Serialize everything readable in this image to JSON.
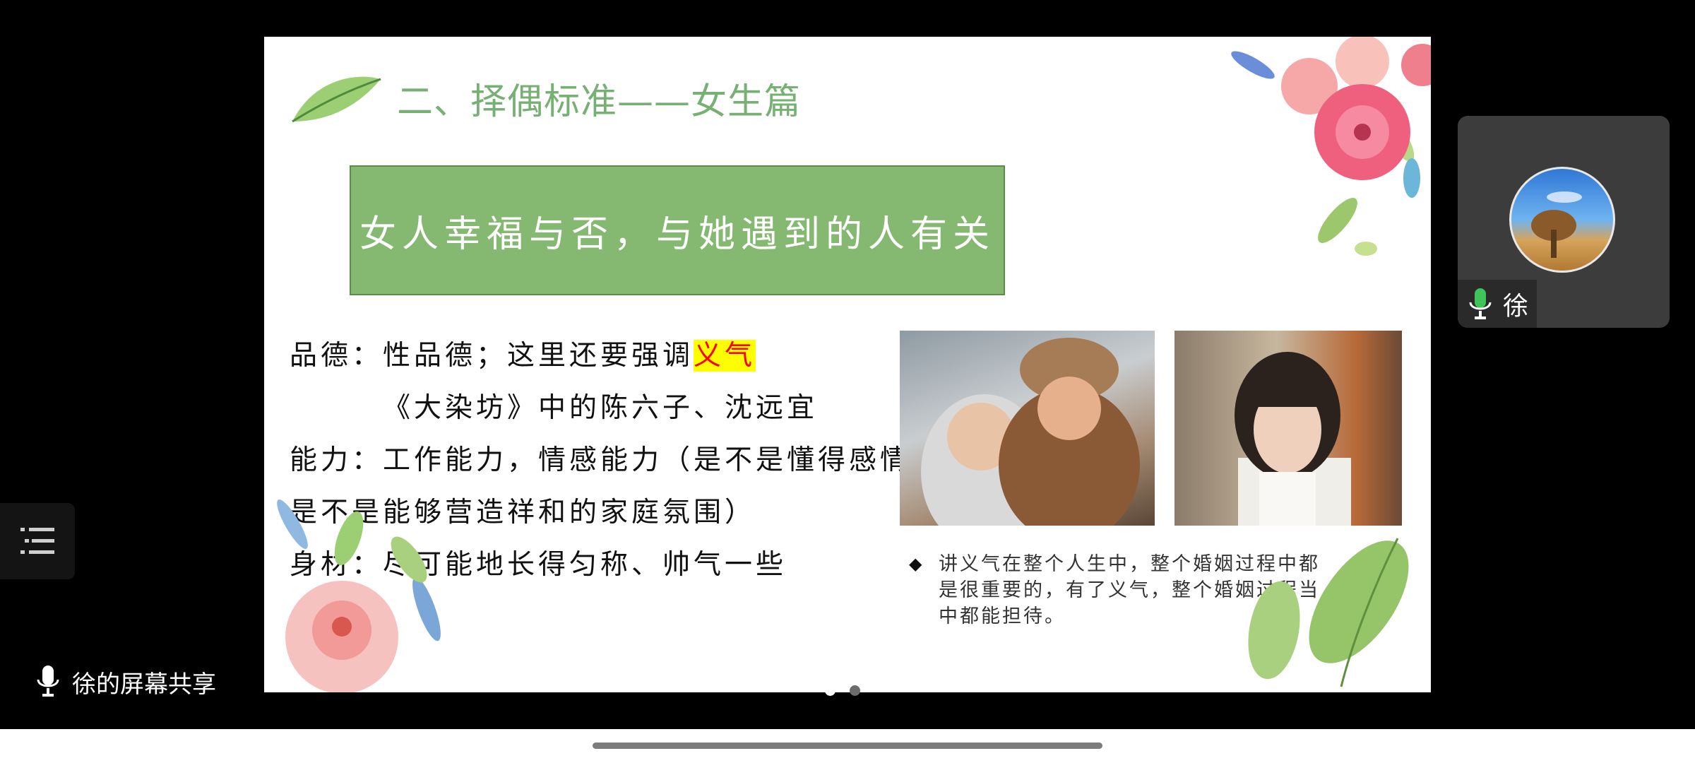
{
  "slide": {
    "title": "二、择偶标准——女生篇",
    "banner": "女人幸福与否，与她遇到的人有关",
    "lines": {
      "l1_prefix": "品德：性品德；这里还要强调",
      "l1_highlight": "义气",
      "l2": "《大染坊》中的陈六子、沈远宜",
      "l3": "能力：工作能力，情感能力（是不是懂得感情，",
      "l4": "是不是能够营造祥和的家庭氛围）",
      "l5": "身材：尽可能地长得匀称、帅气一些"
    },
    "note_bullet": "◆",
    "note": "讲义气在整个人生中，整个婚姻过程中都是很重要的，有了义气，整个婚姻过程当中都能担待。"
  },
  "participant": {
    "name": "徐",
    "mic_icon": "mic-icon"
  },
  "share_label": "徐的屏幕共享",
  "page_indicator": {
    "count": 2,
    "current": 1
  },
  "colors": {
    "title_green": "#76b072",
    "banner_green": "#85b870",
    "highlight_yellow": "#ffff00",
    "highlight_red": "#ff0000",
    "mic_green": "#3ec45a"
  }
}
